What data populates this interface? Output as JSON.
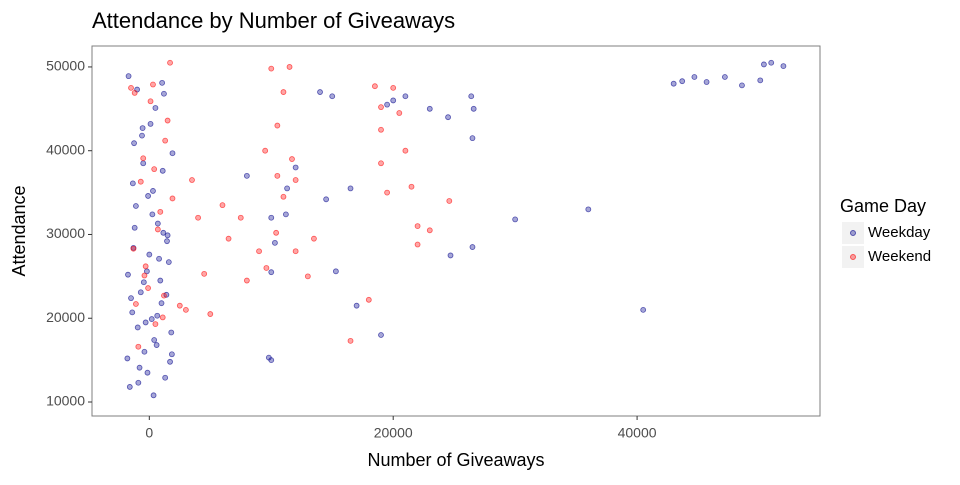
{
  "chart_data": {
    "type": "scatter",
    "title": "Attendance by Number of Giveaways",
    "x_label": "Number of Giveaways",
    "y_label": "Attendance",
    "legend_title": "Game Day",
    "legend_position": "right",
    "grid": false,
    "xlim": [
      -4700,
      55000
    ],
    "ylim": [
      8330,
      52500
    ],
    "xticks": [
      0,
      20000,
      40000
    ],
    "yticks": [
      10000,
      20000,
      30000,
      40000,
      50000
    ],
    "series": [
      {
        "name": "Weekday",
        "color": "#00008b",
        "x": [
          -1800,
          -1500,
          -1200,
          -900,
          -600,
          -300,
          0,
          300,
          600,
          900,
          1200,
          1500,
          1800,
          -1700,
          -1400,
          -1100,
          -800,
          -500,
          -200,
          100,
          400,
          700,
          1000,
          1300,
          1600,
          1900,
          -1600,
          -1300,
          -1000,
          -700,
          -400,
          -100,
          200,
          500,
          800,
          1100,
          1400,
          1700,
          -1750,
          -1350,
          -950,
          -550,
          -150,
          250,
          650,
          1050,
          1450,
          1850,
          -1250,
          -450,
          350,
          1150,
          10000,
          9800,
          14000,
          15000,
          16500,
          17000,
          19000,
          19500,
          20000,
          21000,
          23000,
          24500,
          24700,
          26500,
          26500,
          26600,
          26400,
          30000,
          36000,
          40500,
          43000,
          43700,
          44700,
          45700,
          47200,
          48600,
          50100,
          50400,
          51000,
          52000,
          12000,
          11300,
          14500,
          15300,
          10000,
          10300,
          11200,
          8000,
          10000
        ],
        "values": [
          15200,
          22400,
          30800,
          12300,
          41800,
          19500,
          27600,
          35200,
          16800,
          24500,
          46800,
          29900,
          18300,
          48900,
          20700,
          33400,
          14100,
          38500,
          25600,
          43200,
          17400,
          31300,
          21800,
          12900,
          26700,
          39700,
          11800,
          28400,
          47300,
          23100,
          16000,
          34600,
          19900,
          45100,
          27100,
          37600,
          22800,
          14800,
          25200,
          36100,
          18900,
          42700,
          13500,
          32400,
          20300,
          48100,
          29200,
          15700,
          40900,
          24300,
          10800,
          30200,
          15000,
          15300,
          47000,
          46500,
          35500,
          21500,
          18000,
          45500,
          46000,
          46500,
          45000,
          44000,
          27500,
          28500,
          41500,
          45000,
          46500,
          31800,
          33000,
          21000,
          48000,
          48300,
          48800,
          48200,
          48800,
          47800,
          48400,
          50300,
          50500,
          50100,
          38000,
          35500,
          34200,
          25600,
          32000,
          29000,
          32400,
          37000,
          25500
        ]
      },
      {
        "name": "Weekend",
        "color": "#ff0000",
        "x": [
          -1500,
          -1100,
          -700,
          -300,
          100,
          500,
          900,
          1300,
          1700,
          -1300,
          -900,
          -500,
          -100,
          300,
          700,
          1100,
          1500,
          1900,
          -1200,
          -400,
          400,
          1200,
          2500,
          3000,
          3500,
          4000,
          4500,
          5000,
          6000,
          6500,
          7500,
          8000,
          9000,
          10000,
          10500,
          11000,
          11500,
          10500,
          11000,
          11700,
          9500,
          9600,
          10400,
          12000,
          13000,
          13500,
          16500,
          18000,
          19000,
          19000,
          19500,
          20000,
          20500,
          21000,
          21500,
          22000,
          22000,
          23000,
          24600,
          19000,
          18500,
          12000
        ],
        "values": [
          47500,
          21700,
          36300,
          26200,
          45900,
          19300,
          32700,
          41200,
          50500,
          28300,
          16600,
          39100,
          23600,
          47900,
          30600,
          20100,
          43600,
          34300,
          46900,
          25100,
          37800,
          22700,
          21500,
          21000,
          36500,
          32000,
          25300,
          20500,
          33500,
          29500,
          32000,
          24500,
          28000,
          49800,
          43000,
          47000,
          50000,
          37000,
          34500,
          39000,
          40000,
          26000,
          30200,
          36500,
          25000,
          29500,
          17300,
          22200,
          42500,
          38500,
          35000,
          47500,
          44500,
          40000,
          35700,
          31000,
          28800,
          30500,
          34000,
          45200,
          47700,
          28000
        ]
      }
    ]
  }
}
